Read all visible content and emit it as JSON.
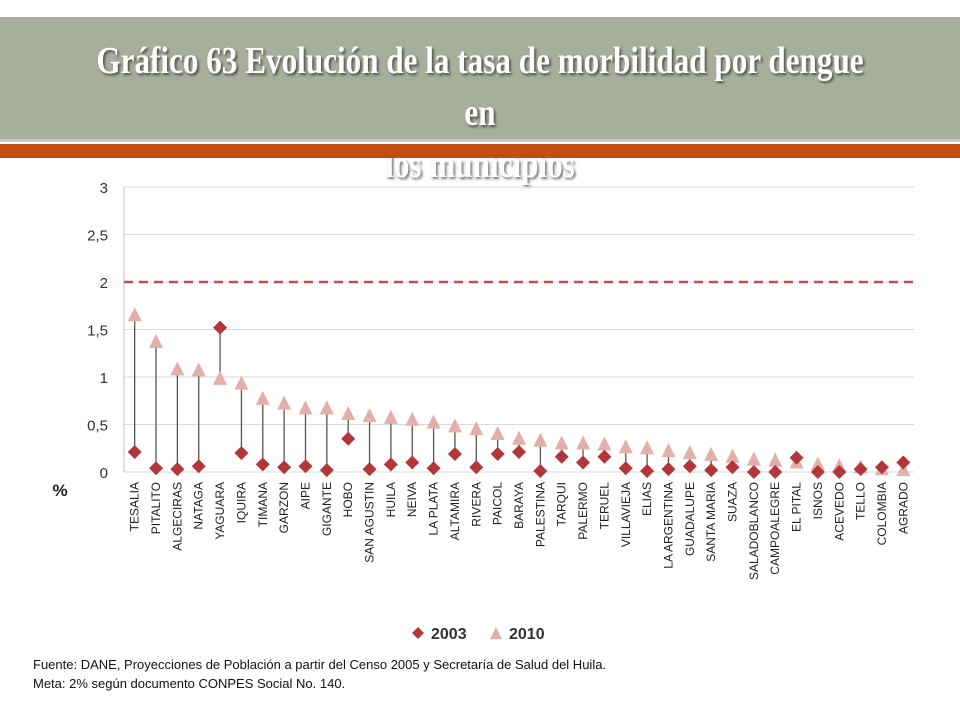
{
  "header": {
    "title_line1": "Gráfico 63 Evolución de la tasa de morbilidad por dengue en",
    "title_line2": "los municipios"
  },
  "colors": {
    "header_band": "#a7ae9b",
    "accent_orange": "#c24e14",
    "series_2003": "#b3363b",
    "series_2010": "#e3afab",
    "meta_line": "#c0504d",
    "gridline": "#d9d9d9"
  },
  "chart_data": {
    "type": "scatter",
    "ylabel": "%",
    "ylim": [
      0,
      3
    ],
    "yticks": [
      "0",
      "0,5",
      "1",
      "1,5",
      "2",
      "2,5",
      "3"
    ],
    "ytick_values": [
      0,
      0.5,
      1,
      1.5,
      2,
      2.5,
      3
    ],
    "meta_line": 2,
    "grid": true,
    "legend_position": "bottom",
    "categories": [
      "TESALIA",
      "PITALITO",
      "ALGECIRAS",
      "NATAGA",
      "YAGUARA",
      "IQUIRA",
      "TIMANA",
      "GARZON",
      "AIPE",
      "GIGANTE",
      "HOBO",
      "SAN AGUSTIN",
      "HUILA",
      "NEIVA",
      "LA PLATA",
      "ALTAMIRA",
      "RIVERA",
      "PAICOL",
      "BARAYA",
      "PALESTINA",
      "TARQUI",
      "PALERMO",
      "TERUEL",
      "VILLAVIEJA",
      "ELIAS",
      "LA ARGENTINA",
      "GUADALUPE",
      "SANTA MARIA",
      "SUAZA",
      "SALADOBLANCO",
      "CAMPOALEGRE",
      "EL PITAL",
      "ISNOS",
      "ACEVEDO",
      "TELLO",
      "COLOMBIA",
      "AGRADO"
    ],
    "series": [
      {
        "name": "2003",
        "marker": "diamond",
        "values": [
          0.21,
          0.04,
          0.03,
          0.06,
          1.52,
          0.2,
          0.08,
          0.05,
          0.06,
          0.02,
          0.35,
          0.03,
          0.08,
          0.1,
          0.04,
          0.19,
          0.05,
          0.19,
          0.21,
          0.01,
          0.16,
          0.1,
          0.16,
          0.04,
          0.01,
          0.03,
          0.06,
          0.02,
          0.05,
          0.0,
          0.0,
          0.15,
          0.0,
          0.0,
          0.03,
          0.05,
          0.1
        ]
      },
      {
        "name": "2010",
        "marker": "triangle",
        "values": [
          1.65,
          1.37,
          1.08,
          1.07,
          0.98,
          0.93,
          0.77,
          0.72,
          0.67,
          0.67,
          0.61,
          0.59,
          0.57,
          0.55,
          0.52,
          0.48,
          0.45,
          0.4,
          0.35,
          0.33,
          0.3,
          0.3,
          0.29,
          0.26,
          0.25,
          0.22,
          0.2,
          0.18,
          0.16,
          0.13,
          0.12,
          0.1,
          0.08,
          0.06,
          0.05,
          0.03,
          0.02
        ]
      }
    ]
  },
  "legend": {
    "item1": "2003",
    "item2": "2010"
  },
  "footnote": {
    "source": "Fuente: DANE, Proyecciones de Población a partir del Censo 2005 y Secretaría de Salud del Huila.",
    "meta": "Meta: 2% según documento CONPES Social No. 140."
  }
}
